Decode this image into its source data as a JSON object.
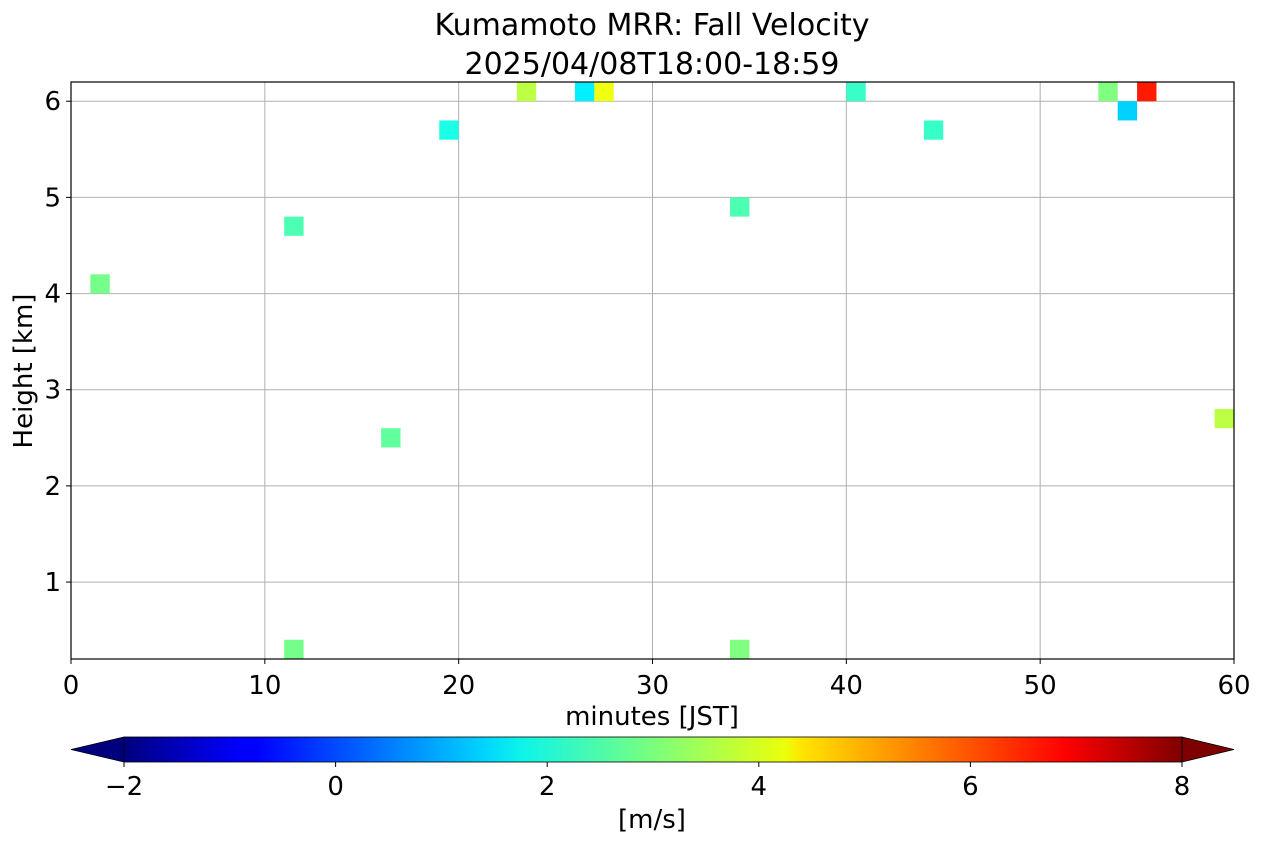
{
  "chart_data": {
    "type": "heatmap",
    "title": "Kumamoto MRR: Fall Velocity",
    "subtitle": "2025/04/08T18:00-18:59",
    "xlabel": "minutes [JST]",
    "ylabel": "Height [km]",
    "xlim": [
      0,
      60
    ],
    "ylim": [
      0.2,
      6.2
    ],
    "xticks": [
      0,
      10,
      20,
      30,
      40,
      50,
      60
    ],
    "yticks": [
      1,
      2,
      3,
      4,
      5,
      6
    ],
    "grid": true,
    "cell_size": {
      "minutes": 1,
      "km": 0.2
    },
    "colorbar": {
      "label": "[m/s]",
      "min": -2,
      "max": 8,
      "ticks": [
        -2,
        0,
        2,
        4,
        6,
        8
      ],
      "tick_labels": [
        "−2",
        "0",
        "2",
        "4",
        "6",
        "8"
      ],
      "colormap": "jet",
      "extend": "both",
      "placement": "bottom"
    },
    "points": [
      {
        "x": 1.5,
        "y": 4.1,
        "value": 2.9
      },
      {
        "x": 11.5,
        "y": 4.7,
        "value": 2.5
      },
      {
        "x": 11.5,
        "y": 0.3,
        "value": 2.9
      },
      {
        "x": 16.5,
        "y": 2.5,
        "value": 2.7
      },
      {
        "x": 19.5,
        "y": 5.7,
        "value": 2.0
      },
      {
        "x": 23.5,
        "y": 6.1,
        "value": 3.6
      },
      {
        "x": 26.5,
        "y": 6.1,
        "value": 1.6
      },
      {
        "x": 27.5,
        "y": 6.1,
        "value": 4.1
      },
      {
        "x": 34.5,
        "y": 4.9,
        "value": 2.5
      },
      {
        "x": 34.5,
        "y": 0.3,
        "value": 3.0
      },
      {
        "x": 40.5,
        "y": 6.1,
        "value": 2.3
      },
      {
        "x": 44.5,
        "y": 5.7,
        "value": 2.3
      },
      {
        "x": 53.5,
        "y": 6.1,
        "value": 3.0
      },
      {
        "x": 54.5,
        "y": 5.9,
        "value": 1.3
      },
      {
        "x": 55.5,
        "y": 6.1,
        "value": 6.5
      },
      {
        "x": 59.5,
        "y": 2.7,
        "value": 3.6
      }
    ]
  }
}
